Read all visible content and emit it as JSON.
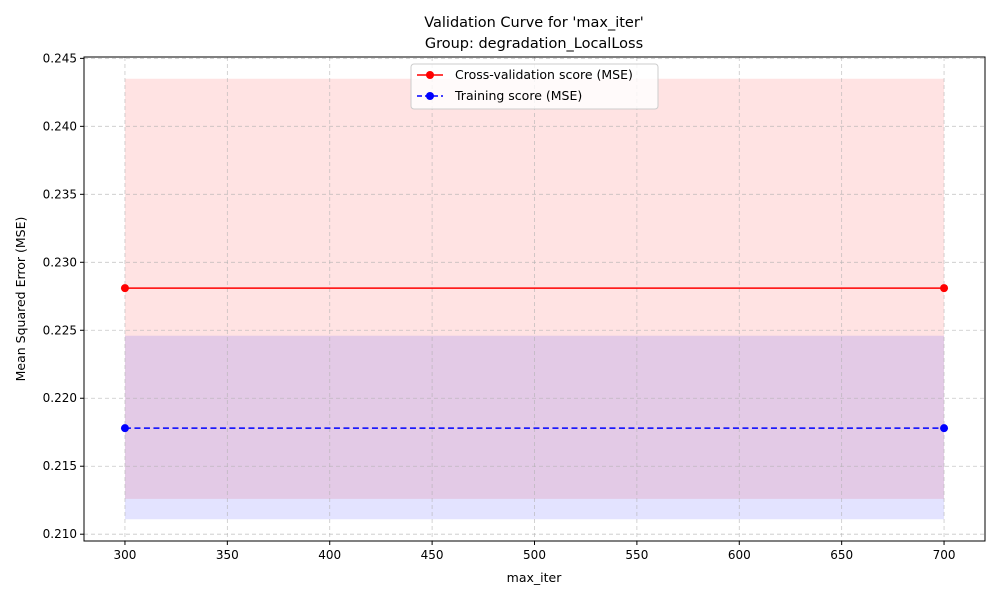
{
  "chart_data": {
    "type": "line",
    "title": "Validation Curve for 'max_iter'",
    "subtitle": "Group: degradation_LocalLoss",
    "xlabel": "max_iter",
    "ylabel": "Mean Squared Error (MSE)",
    "x": [
      300,
      700
    ],
    "xlim": [
      280,
      720
    ],
    "ylim": [
      0.2095,
      0.2451
    ],
    "xticks": [
      300,
      350,
      400,
      450,
      500,
      550,
      600,
      650,
      700
    ],
    "yticks": [
      0.21,
      0.215,
      0.22,
      0.225,
      0.23,
      0.235,
      0.24,
      0.245
    ],
    "ytick_labels": [
      "0.210",
      "0.215",
      "0.220",
      "0.225",
      "0.230",
      "0.235",
      "0.240",
      "0.245"
    ],
    "grid": true,
    "legend_position": "top-center",
    "series": [
      {
        "name": "Cross-validation score (MSE)",
        "values": [
          0.2281,
          0.2281
        ],
        "band_lower": [
          0.2126,
          0.2126
        ],
        "band_upper": [
          0.2435,
          0.2435
        ],
        "color": "#ff0000",
        "band_color": "#ffcccc",
        "linestyle": "solid"
      },
      {
        "name": "Training score (MSE)",
        "values": [
          0.2178,
          0.2178
        ],
        "band_lower": [
          0.2111,
          0.2111
        ],
        "band_upper": [
          0.2246,
          0.2246
        ],
        "color": "#0000ff",
        "band_color": "#ccccff",
        "linestyle": "dashed"
      }
    ]
  }
}
